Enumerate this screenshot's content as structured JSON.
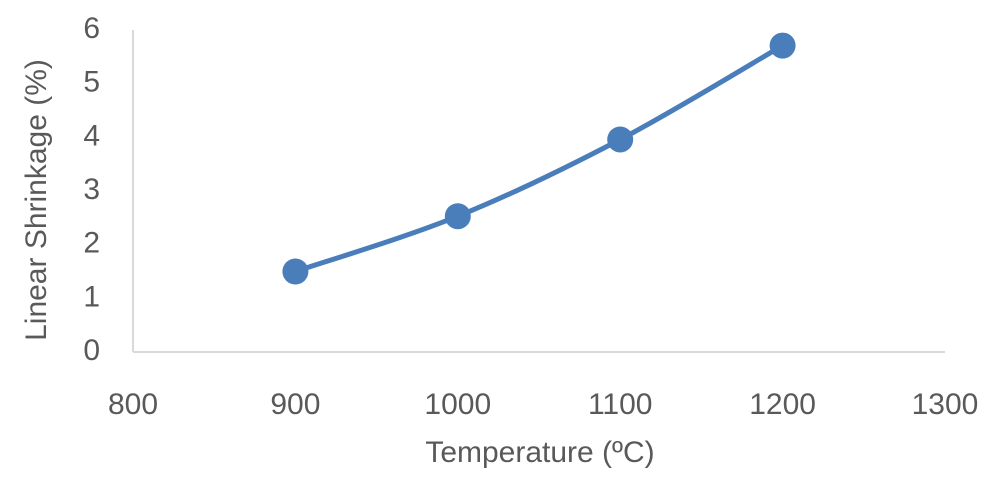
{
  "chart_data": {
    "type": "line",
    "x_label": "Temperature (ºC)",
    "y_label": "Linear Shrinkage (%)",
    "x": [
      900,
      1000,
      1100,
      1200
    ],
    "values": [
      1.5,
      2.53,
      3.96,
      5.71
    ],
    "color": "#4a7ebb",
    "xlim": [
      800,
      1300
    ],
    "xticks": [
      800,
      900,
      1000,
      1100,
      1200,
      1300
    ],
    "ylim": [
      0,
      6
    ],
    "yticks": [
      0,
      1,
      2,
      3,
      4,
      5,
      6
    ],
    "smooth": true,
    "markers": true
  }
}
